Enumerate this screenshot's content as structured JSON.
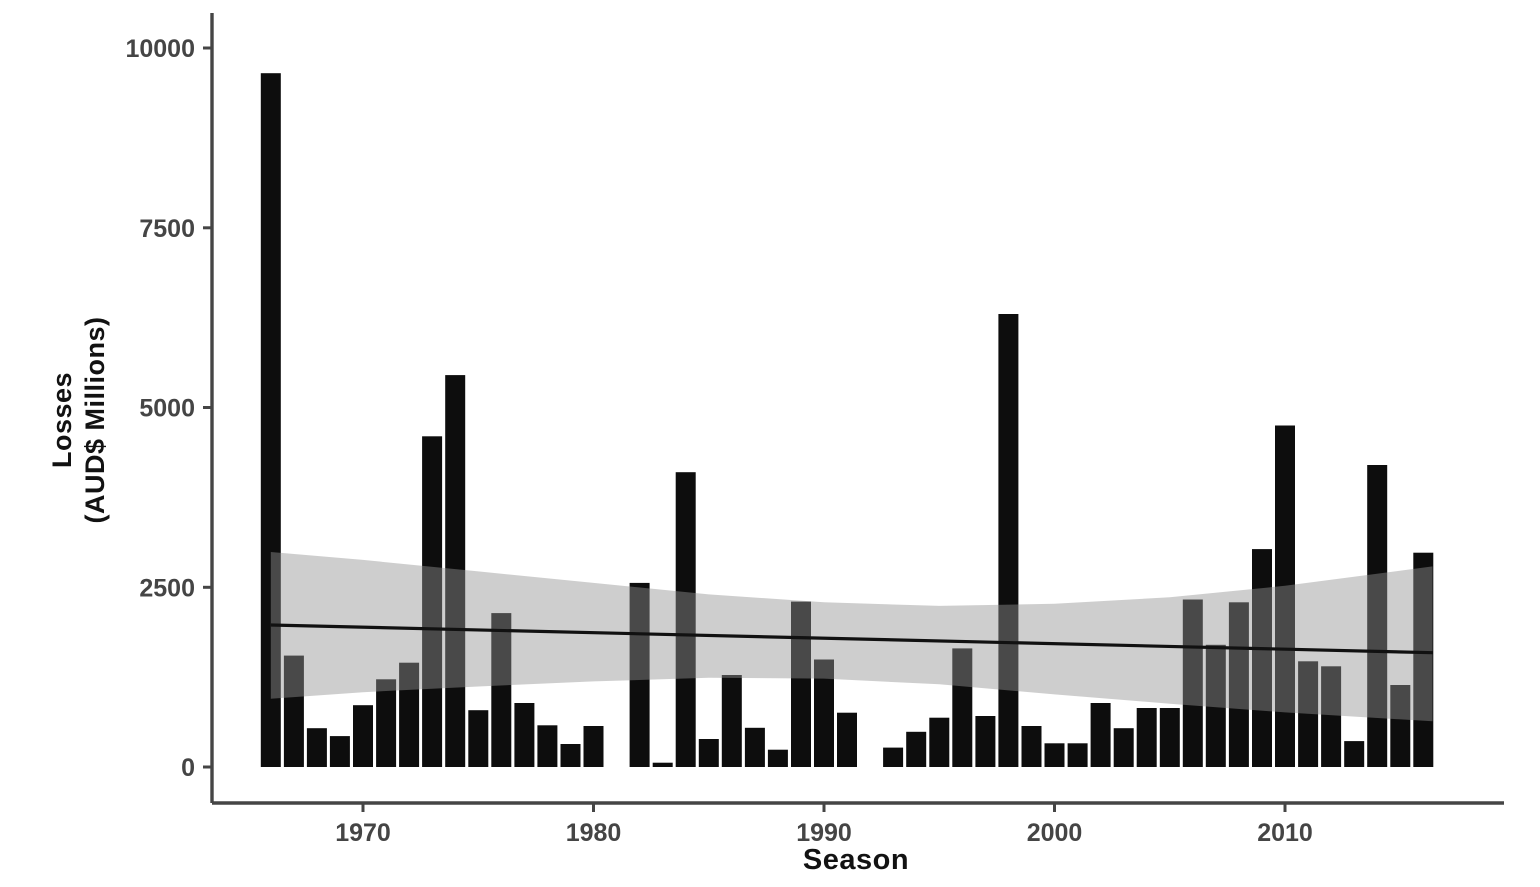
{
  "chart_data": {
    "type": "bar",
    "title": "",
    "xlabel": "Season",
    "ylabel": "Losses\n(AUD$ Millions)",
    "grid": false,
    "legend": false,
    "xlim": [
      1963.4,
      2019.5
    ],
    "ylim": [
      0,
      10000
    ],
    "x_ticks": [
      1970,
      1980,
      1990,
      2000,
      2010
    ],
    "y_ticks": [
      0,
      2500,
      5000,
      7500,
      10000
    ],
    "categories": [
      1966,
      1967,
      1968,
      1969,
      1970,
      1971,
      1972,
      1973,
      1974,
      1975,
      1976,
      1977,
      1978,
      1979,
      1980,
      1981,
      1982,
      1983,
      1984,
      1985,
      1986,
      1987,
      1988,
      1989,
      1990,
      1991,
      1992,
      1993,
      1994,
      1995,
      1996,
      1997,
      1998,
      1999,
      2000,
      2001,
      2002,
      2003,
      2004,
      2005,
      2006,
      2007,
      2008,
      2009,
      2010,
      2011,
      2012,
      2013,
      2014,
      2015,
      2016
    ],
    "values": [
      9650,
      1550,
      540,
      430,
      860,
      1220,
      1450,
      4600,
      5450,
      790,
      2140,
      890,
      580,
      320,
      570,
      0,
      2560,
      60,
      4100,
      390,
      1280,
      545,
      240,
      2300,
      1495,
      755,
      0,
      270,
      490,
      685,
      1650,
      710,
      6300,
      570,
      330,
      330,
      890,
      540,
      820,
      820,
      2330,
      1700,
      2290,
      3030,
      4750,
      1470,
      1400,
      360,
      4200,
      1140,
      2980
    ],
    "bar_color": "#0d0d0d",
    "trend_line": {
      "label": "linear-fit",
      "x": [
        1966,
        2016.4
      ],
      "y": [
        1975,
        1590
      ],
      "color": "#111111",
      "width": 3.2
    },
    "ci_band": {
      "label": "95%-confidence-band",
      "x": [
        1966,
        1970,
        1975,
        1980,
        1985,
        1990,
        1995,
        2000,
        2005,
        2010,
        2016.4
      ],
      "upper": [
        2990,
        2880,
        2720,
        2560,
        2400,
        2290,
        2240,
        2270,
        2360,
        2520,
        2790
      ],
      "lower": [
        950,
        1040,
        1120,
        1190,
        1240,
        1230,
        1150,
        1010,
        880,
        760,
        635
      ],
      "color": "rgba(146,146,146,0.45)"
    },
    "axis_color": "#454545",
    "tick_label_color": "#454545"
  },
  "layout_note": "black seasonal loss bars with linear trend and confidence ribbon"
}
